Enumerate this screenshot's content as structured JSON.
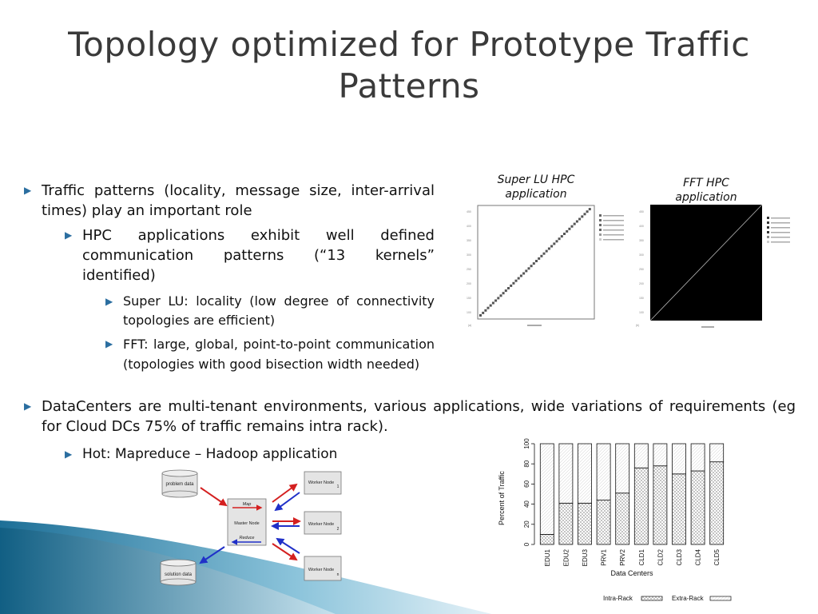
{
  "slide": {
    "title": "Topology optimized for Prototype Traffic Patterns",
    "bullets": {
      "b1": "Traffic patterns (locality, message size, inter-arrival times) play an important role",
      "b1_1": "HPC applications exhibit well defined communication patterns (“13 kernels” identified)",
      "b1_1_1": "Super LU: locality  (low degree of connectivity topologies are efficient)",
      "b1_1_2": "FFT: large, global, point-to-point communication (topologies with good bisection width needed)",
      "b2": "DataCenters are multi-tenant environments, various applications, wide variations of requirements (eg for Cloud DCs 75% of traffic remains intra rack).",
      "b2_1": "Hot: Mapreduce – Hadoop application"
    },
    "captions": {
      "superlu": "Super LU HPC application",
      "fft": "FFT HPC application"
    },
    "mapreduce": {
      "problem_data": "problem data",
      "solution_data": "solution data",
      "map": "Map",
      "master": "Master Node",
      "reduce": "Reduce",
      "worker": "Worker Node",
      "worker1": "1",
      "worker2": "2",
      "workern": "n"
    },
    "colors": {
      "title": "#3a3a3a",
      "bullet_arrow": "#2b6ea0",
      "map_arrow": "#d42020",
      "reduce_arrow": "#2030c8"
    }
  },
  "chart_data": {
    "type": "bar",
    "stacked": true,
    "categories": [
      "EDU1",
      "EDU2",
      "EDU3",
      "PRV1",
      "PRV2",
      "CLD1",
      "CLD2",
      "CLD3",
      "CLD4",
      "CLD5"
    ],
    "series": [
      {
        "name": "Intra-Rack",
        "values": [
          10,
          41,
          41,
          44,
          51,
          76,
          78,
          70,
          73,
          82
        ]
      },
      {
        "name": "Extra-Rack",
        "values": [
          90,
          59,
          59,
          56,
          49,
          24,
          22,
          30,
          27,
          18
        ]
      }
    ],
    "yticks": [
      "0",
      "20",
      "40",
      "60",
      "80",
      "100"
    ],
    "ylim": [
      0,
      100
    ],
    "xlabel": "Data Centers",
    "ylabel": "Percent of Traffic",
    "legend": "bottom"
  }
}
